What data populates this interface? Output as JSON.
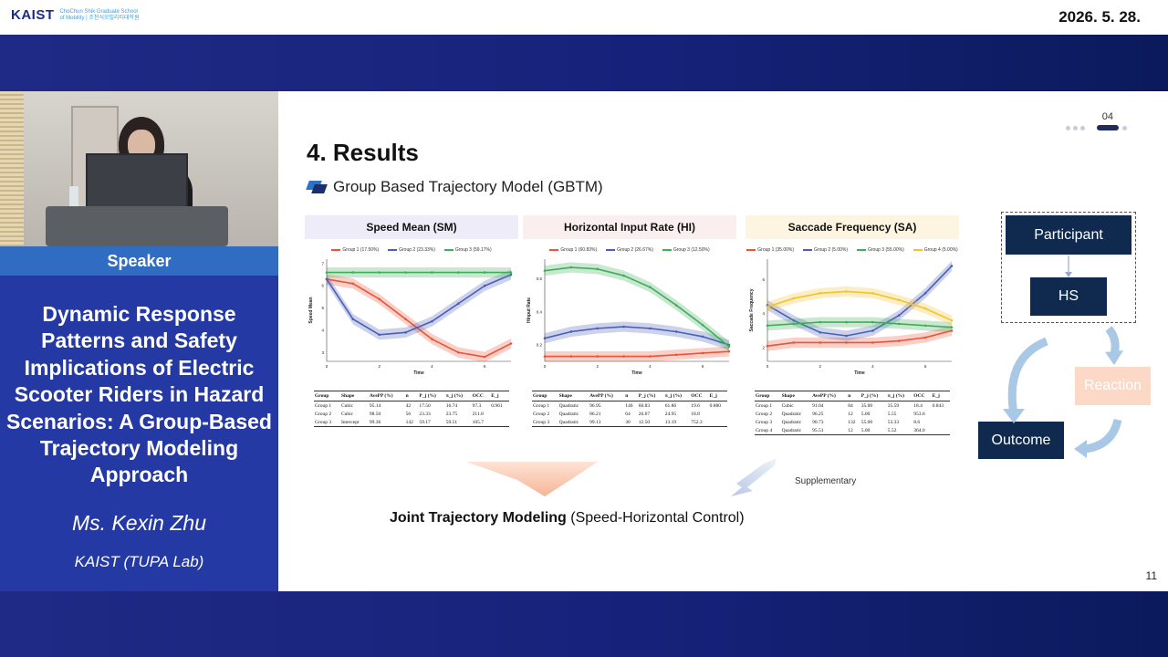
{
  "header": {
    "logo_mark": "KAIST",
    "logo_line1": "ChoChun Shik Graduate School",
    "logo_line2": "of Mobility | 조천식모빌리티대학원",
    "date": "2026. 5. 28."
  },
  "left_panel": {
    "speaker_label": "Speaker",
    "talk_title": "Dynamic Response Patterns and Safety Implications of Electric Scooter Riders in Hazard Scenarios: A Group-Based Trajectory Modeling Approach",
    "speaker_name": "Ms. Kexin Zhu",
    "affiliation": "KAIST (TUPA Lab)"
  },
  "slide": {
    "page_indicator": "04",
    "title": "4. Results",
    "subtitle": "Group Based Trajectory Model (GBTM)",
    "joint_bold": "Joint Trajectory Modeling",
    "joint_rest": " (Speed-Horizontal Control)",
    "supplementary": "Supplementary",
    "slide_number": "11",
    "flow": {
      "participant": "Participant",
      "hs": "HS",
      "reaction": "Reaction",
      "outcome": "Outcome"
    }
  },
  "table_headers": [
    "Group",
    "Shape",
    "AvePP (%)",
    "n",
    "P_j (%)",
    "π_j (%)",
    "OCC",
    "E_j"
  ],
  "chart_data": [
    {
      "type": "line",
      "title": "Speed Mean (SM)",
      "xlabel": "Time",
      "ylabel": "Speed Mean",
      "x": [
        0,
        1,
        2,
        3,
        4,
        5,
        6,
        7
      ],
      "xticks": [
        "0",
        "2",
        "4",
        "6"
      ],
      "yticks": [
        "3",
        "4",
        "5",
        "6",
        "7"
      ],
      "ylim": [
        2.6,
        7.2
      ],
      "xlim": [
        0,
        7
      ],
      "series": [
        {
          "name": "Group 1 (17.50%)",
          "color": "#e8553a",
          "values": [
            6.3,
            6.1,
            5.4,
            4.5,
            3.6,
            3.0,
            2.8,
            3.4
          ]
        },
        {
          "name": "Group 2 (23.33%)",
          "color": "#4a5fb8",
          "values": [
            6.3,
            4.5,
            3.8,
            3.9,
            4.4,
            5.2,
            6.0,
            6.5
          ]
        },
        {
          "name": "Group 3 (59.17%)",
          "color": "#3fae59",
          "values": [
            6.6,
            6.6,
            6.6,
            6.6,
            6.6,
            6.6,
            6.6,
            6.6
          ]
        }
      ],
      "table": [
        [
          "Group 1",
          "Cubic",
          "95.14",
          "42",
          "17.50",
          "16.74",
          "97.3",
          "0.961"
        ],
        [
          "Group 2",
          "Cubic",
          "98.50",
          "56",
          "23.33",
          "23.75",
          "211.8",
          ""
        ],
        [
          "Group 3",
          "Intercept",
          "99.36",
          "142",
          "59.17",
          "59.51",
          "105.7",
          ""
        ]
      ]
    },
    {
      "type": "line",
      "title": "Horizontal Input Rate (HI)",
      "xlabel": "Time",
      "ylabel": "HInput Rate",
      "x": [
        0,
        1,
        2,
        3,
        4,
        5,
        6,
        7
      ],
      "xticks": [
        "0",
        "2",
        "4",
        "6"
      ],
      "yticks": [
        "0.2",
        "0.4",
        "0.6"
      ],
      "ylim": [
        0.1,
        0.72
      ],
      "xlim": [
        0,
        7
      ],
      "series": [
        {
          "name": "Group 1 (60.83%)",
          "color": "#e8553a",
          "values": [
            0.13,
            0.13,
            0.13,
            0.13,
            0.13,
            0.14,
            0.15,
            0.16
          ]
        },
        {
          "name": "Group 2 (26.67%)",
          "color": "#4a5fb8",
          "values": [
            0.24,
            0.28,
            0.3,
            0.31,
            0.3,
            0.28,
            0.25,
            0.2
          ]
        },
        {
          "name": "Group 3 (12.50%)",
          "color": "#3fae59",
          "values": [
            0.65,
            0.67,
            0.66,
            0.62,
            0.55,
            0.44,
            0.32,
            0.19
          ]
        }
      ],
      "table": [
        [
          "Group 1",
          "Quadratic",
          "96.95",
          "146",
          "60.83",
          "61.86",
          "19.6",
          "0.880"
        ],
        [
          "Group 2",
          "Quadratic",
          "86.21",
          "64",
          "26.67",
          "24.95",
          "18.8",
          ""
        ],
        [
          "Group 3",
          "Quadratic",
          "99.13",
          "30",
          "12.50",
          "13.19",
          "752.3",
          ""
        ]
      ]
    },
    {
      "type": "line",
      "title": "Saccade Frequency (SA)",
      "xlabel": "Time",
      "ylabel": "Saccade Frequency",
      "x": [
        0,
        1,
        2,
        3,
        4,
        5,
        6,
        7
      ],
      "xticks": [
        "0",
        "2",
        "4",
        "6"
      ],
      "yticks": [
        "2",
        "4",
        "6"
      ],
      "ylim": [
        1.2,
        7.2
      ],
      "xlim": [
        0,
        7
      ],
      "series": [
        {
          "name": "Group 1 (35.00%)",
          "color": "#e8553a",
          "values": [
            2.1,
            2.3,
            2.3,
            2.3,
            2.3,
            2.4,
            2.6,
            3.0
          ]
        },
        {
          "name": "Group 2 (5.00%)",
          "color": "#4a5fb8",
          "values": [
            4.5,
            3.6,
            2.9,
            2.7,
            3.0,
            3.9,
            5.2,
            6.8
          ]
        },
        {
          "name": "Group 3 (55.00%)",
          "color": "#3fae59",
          "values": [
            3.3,
            3.4,
            3.5,
            3.5,
            3.5,
            3.4,
            3.3,
            3.2
          ]
        },
        {
          "name": "Group 4 (5.00%)",
          "color": "#f2c230",
          "values": [
            4.4,
            4.9,
            5.2,
            5.3,
            5.2,
            4.8,
            4.3,
            3.6
          ]
        }
      ],
      "table": [
        [
          "Group 1",
          "Cubic",
          "91.04",
          "84",
          "35.00",
          "35.59",
          "18.4",
          "0.843"
        ],
        [
          "Group 2",
          "Quadratic",
          "96.25",
          "12",
          "5.00",
          "5.55",
          "953.6",
          ""
        ],
        [
          "Group 3",
          "Quadratic",
          "90.73",
          "132",
          "55.00",
          "53.33",
          "8.6",
          ""
        ],
        [
          "Group 4",
          "Quadratic",
          "95.51",
          "12",
          "5.00",
          "5.52",
          "364.0",
          ""
        ]
      ]
    }
  ]
}
